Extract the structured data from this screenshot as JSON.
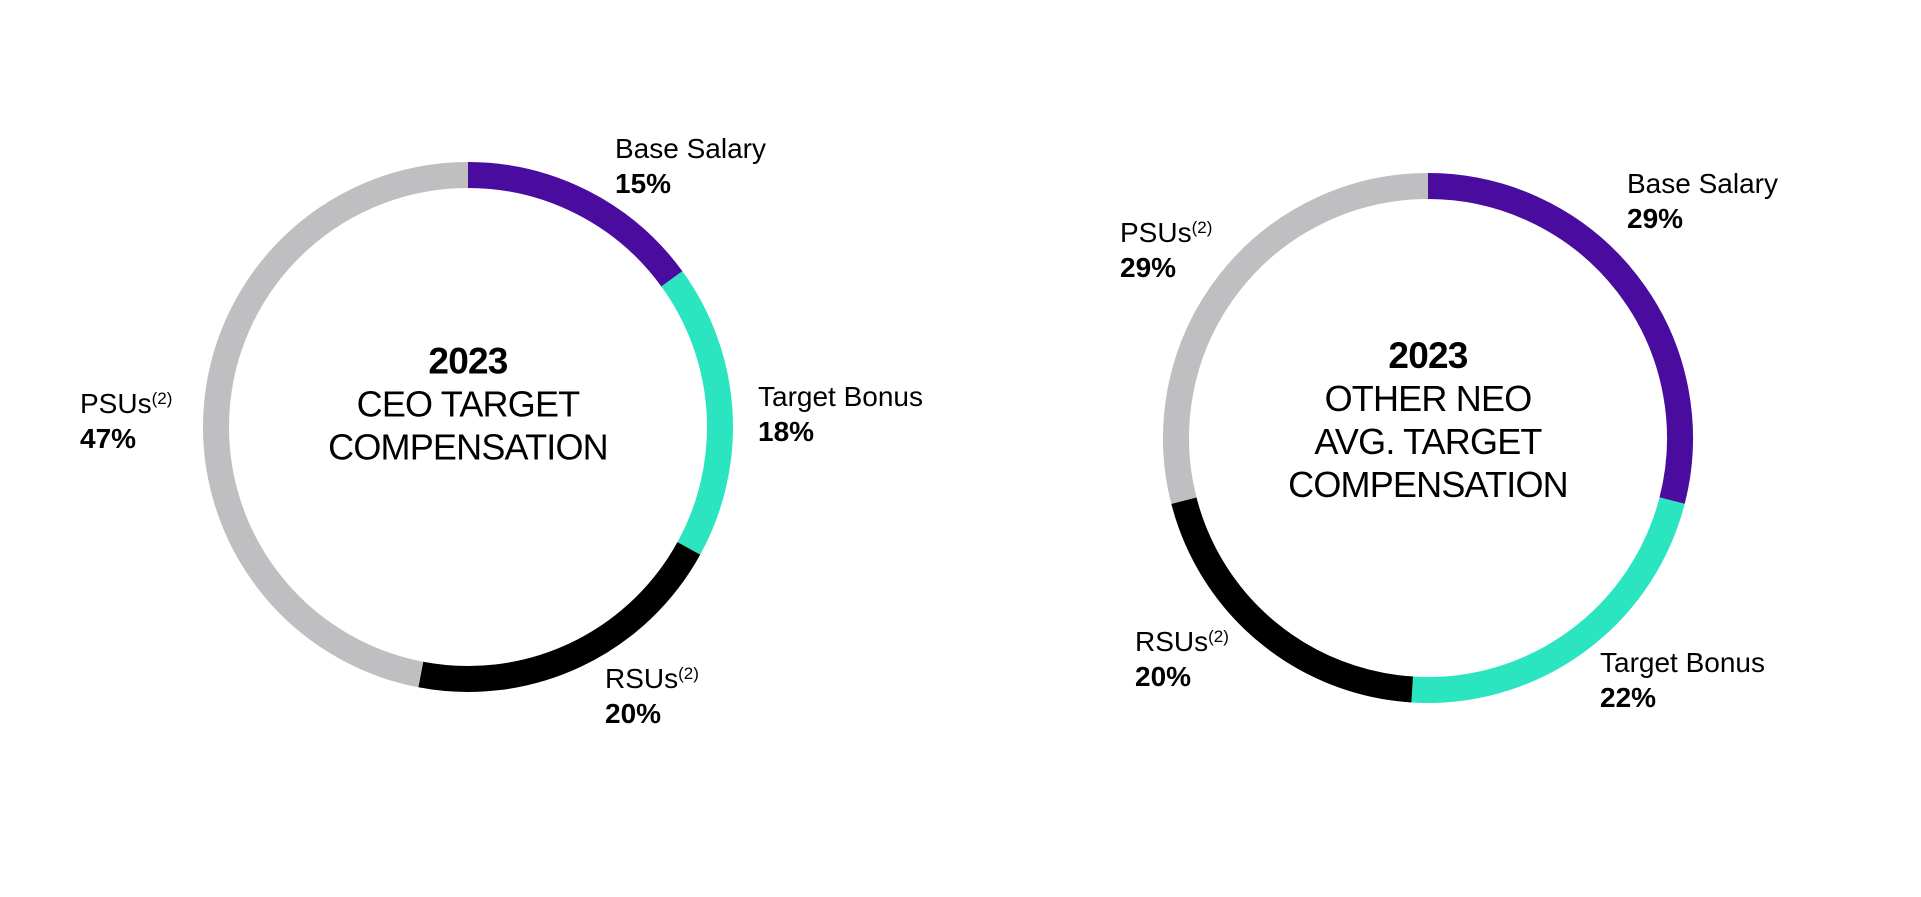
{
  "page": {
    "background_color": "#ffffff",
    "text_color": "#000000"
  },
  "chart_data": [
    {
      "type": "donut",
      "title": "2023 CEO TARGET COMPENSATION",
      "center_lines": [
        "2023",
        "CEO TARGET",
        "COMPENSATION"
      ],
      "legend_position": "labels-around-ring",
      "start_angle_deg": 0,
      "direction": "clockwise",
      "slices": [
        {
          "label": "Base Salary",
          "sup": "",
          "value": 15,
          "pct_label": "15%",
          "color": "#4A0C9E",
          "label_side": "top-right"
        },
        {
          "label": "Target Bonus",
          "sup": "",
          "value": 18,
          "pct_label": "18%",
          "color": "#2AE5BF",
          "label_side": "right"
        },
        {
          "label": "RSUs",
          "sup": "(2)",
          "value": 20,
          "pct_label": "20%",
          "color": "#000000",
          "label_side": "bottom-right"
        },
        {
          "label": "PSUs",
          "sup": "(2)",
          "value": 47,
          "pct_label": "47%",
          "color": "#BFBFC1",
          "label_side": "left"
        }
      ]
    },
    {
      "type": "donut",
      "title": "2023 OTHER NEO AVG. TARGET COMPENSATION",
      "center_lines": [
        "2023",
        "OTHER NEO",
        "AVG. TARGET",
        "COMPENSATION"
      ],
      "legend_position": "labels-around-ring",
      "start_angle_deg": 0,
      "direction": "clockwise",
      "slices": [
        {
          "label": "Base Salary",
          "sup": "",
          "value": 29,
          "pct_label": "29%",
          "color": "#4A0C9E",
          "label_side": "top-right"
        },
        {
          "label": "Target Bonus",
          "sup": "",
          "value": 22,
          "pct_label": "22%",
          "color": "#2AE5BF",
          "label_side": "bottom-right"
        },
        {
          "label": "RSUs",
          "sup": "(2)",
          "value": 20,
          "pct_label": "20%",
          "color": "#000000",
          "label_side": "bottom-left"
        },
        {
          "label": "PSUs",
          "sup": "(2)",
          "value": 29,
          "pct_label": "29%",
          "color": "#BFBFC1",
          "label_side": "top-left"
        }
      ]
    }
  ]
}
